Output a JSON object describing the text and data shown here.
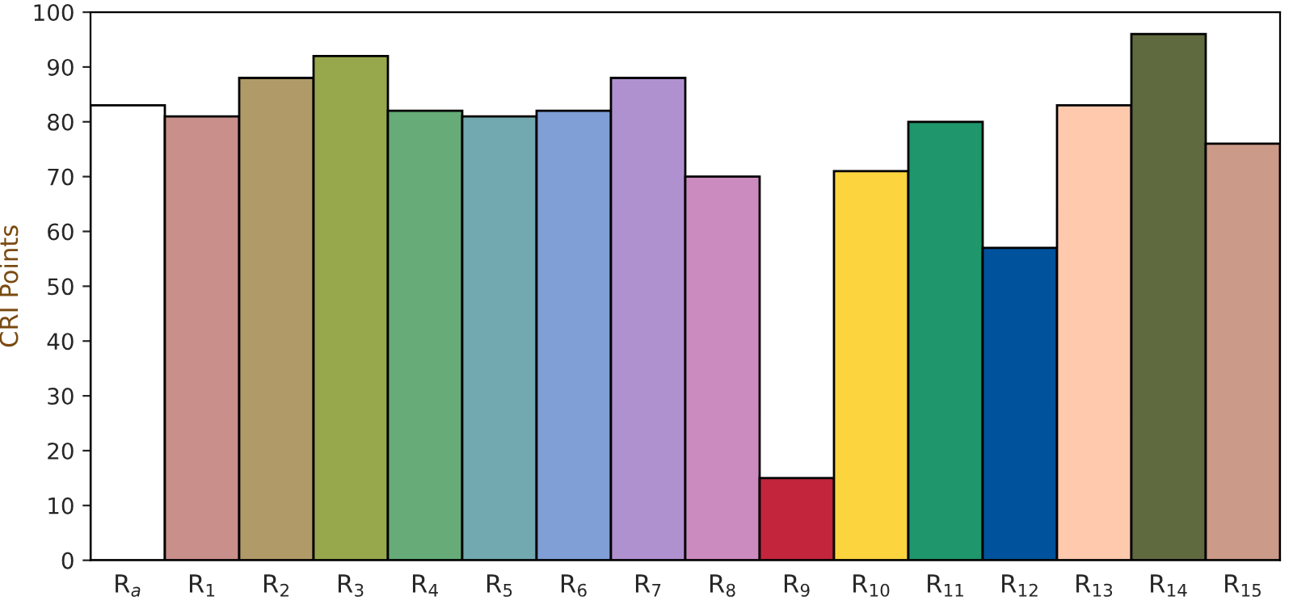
{
  "chart_data": {
    "type": "bar",
    "ylabel": "CRI Points",
    "categories": [
      "R$_{a}$",
      "R$_{1}$",
      "R$_{2}$",
      "R$_{3}$",
      "R$_{4}$",
      "R$_{5}$",
      "R$_{6}$",
      "R$_{7}$",
      "R$_{8}$",
      "R$_{9}$",
      "R$_{10}$",
      "R$_{11}$",
      "R$_{12}$",
      "R$_{13}$",
      "R$_{14}$",
      "R$_{15}$"
    ],
    "values": [
      83,
      81,
      88,
      92,
      82,
      81,
      82,
      88,
      70,
      15,
      71,
      80,
      57,
      83,
      96,
      76
    ],
    "colors": [
      "#ffffff",
      "#c98f8b",
      "#b09a68",
      "#97a84c",
      "#66ab78",
      "#72a8b0",
      "#7f9fd6",
      "#b091d0",
      "#cc8bbf",
      "#c3253c",
      "#fbd43e",
      "#1f966b",
      "#00529c",
      "#ffc9ae",
      "#606a3f",
      "#cb9a88"
    ],
    "ylim": [
      0,
      100
    ],
    "yticks": [
      0,
      10,
      20,
      30,
      40,
      50,
      60,
      70,
      80,
      90,
      100
    ],
    "grid": false
  }
}
